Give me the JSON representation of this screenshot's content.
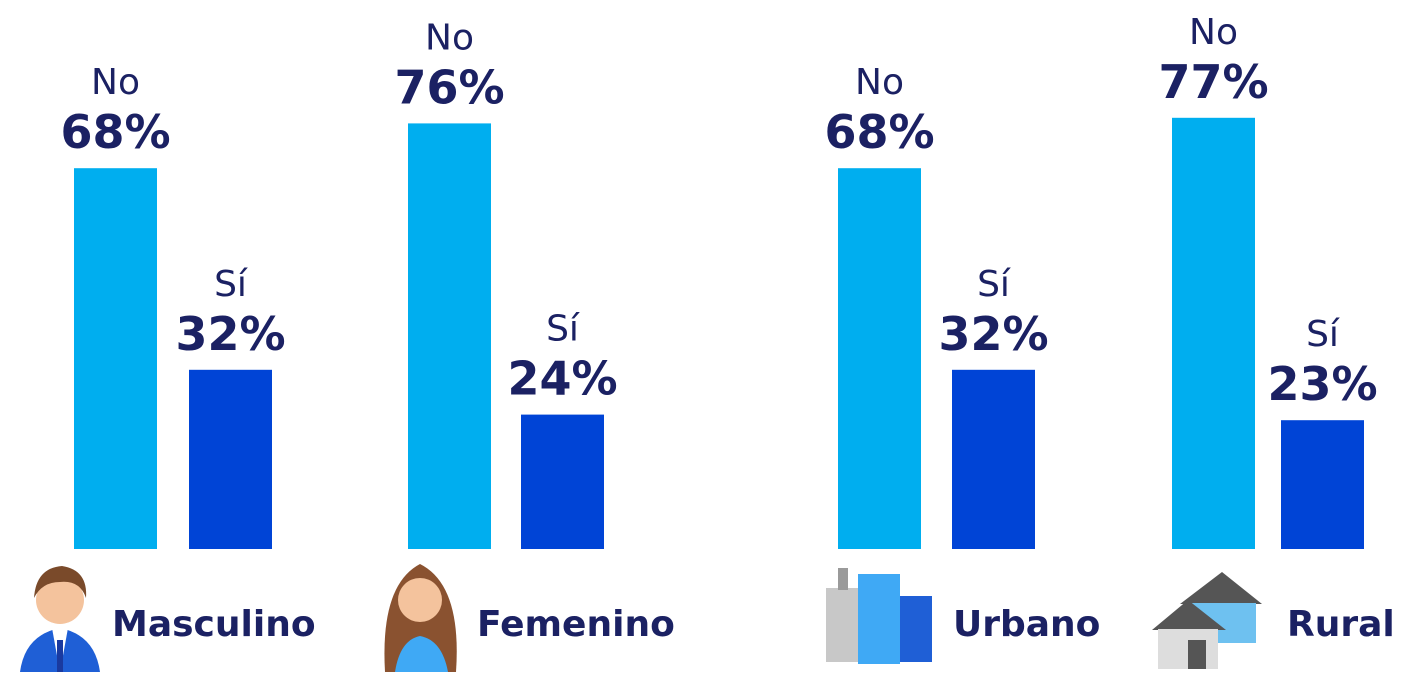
{
  "chart_data": {
    "type": "bar",
    "categories": [
      "Masculino",
      "Femenino",
      "Urbano",
      "Rural"
    ],
    "series": [
      {
        "name": "No",
        "color": "#00aeef",
        "values": [
          68,
          76,
          68,
          77
        ],
        "value_labels": [
          "68%",
          "76%",
          "68%",
          "77%"
        ]
      },
      {
        "name": "Sí",
        "color": "#0044d6",
        "values": [
          32,
          24,
          32,
          23
        ],
        "value_labels": [
          "32%",
          "24%",
          "32%",
          "23%"
        ]
      }
    ]
  }
}
